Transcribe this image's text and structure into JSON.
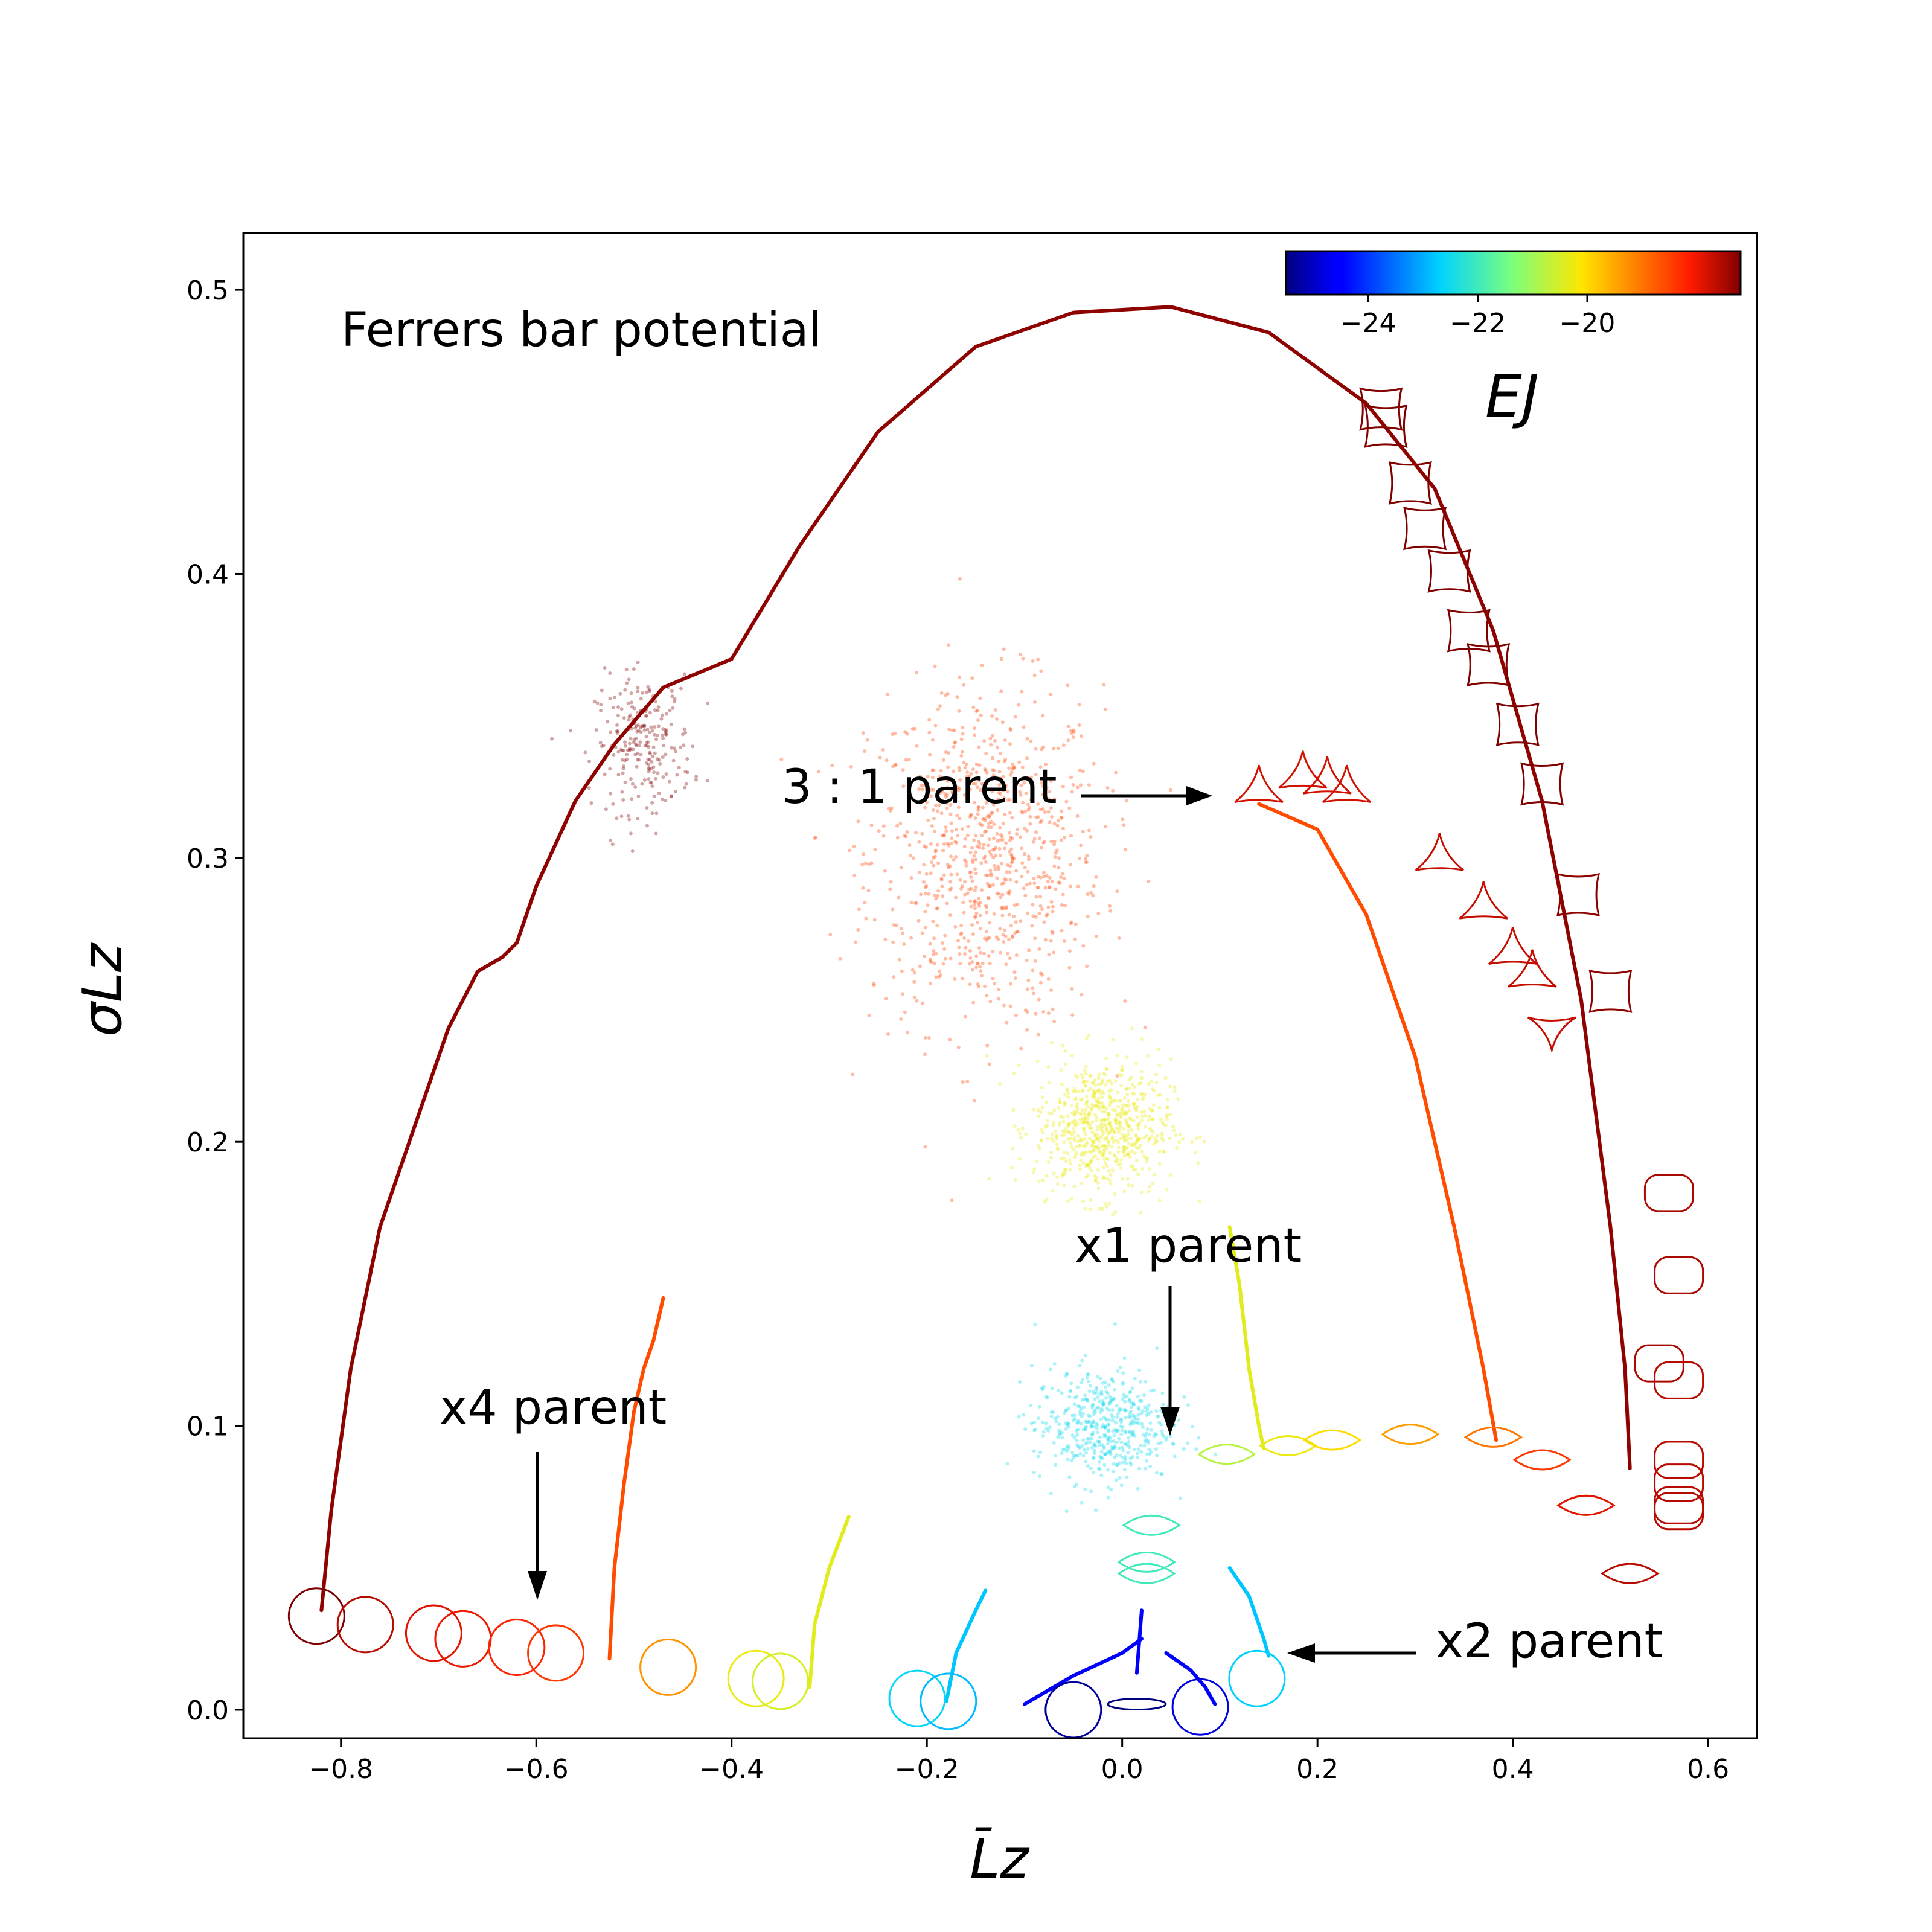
{
  "chart_data": {
    "type": "scatter",
    "title": "Ferrers bar potential",
    "xlabel": "L̄z",
    "ylabel": "σLz",
    "xlim": [
      -0.9,
      0.65
    ],
    "ylim": [
      -0.01,
      0.52
    ],
    "x_ticks": [
      -0.8,
      -0.6,
      -0.4,
      -0.2,
      0.0,
      0.2,
      0.4,
      0.6
    ],
    "x_tick_labels": [
      "−0.8",
      "−0.6",
      "−0.4",
      "−0.2",
      "0.0",
      "0.2",
      "0.4",
      "0.6"
    ],
    "y_ticks": [
      0.0,
      0.1,
      0.2,
      0.3,
      0.4,
      0.5
    ],
    "y_tick_labels": [
      "0.0",
      "0.1",
      "0.2",
      "0.3",
      "0.4",
      "0.5"
    ],
    "grid": false,
    "colorbar": {
      "label": "EJ",
      "colormap": "jet",
      "range": [
        -25.5,
        -17.2
      ],
      "ticks": [
        -24,
        -22,
        -20
      ],
      "tick_labels": [
        "−24",
        "−22",
        "−20"
      ],
      "placement": "top-right inset"
    },
    "annotations": [
      {
        "text": "3 : 1 parent",
        "x": 0.093,
        "y": 0.323
      },
      {
        "text": "x1 parent",
        "x": 0.05,
        "y": 0.098
      },
      {
        "text": "x4 parent",
        "x": -0.6,
        "y": 0.038
      },
      {
        "text": "x2 parent",
        "x": 0.17,
        "y": 0.02
      }
    ],
    "series": [
      {
        "energy": -17.3,
        "points": [
          [
            -0.82,
            0.035
          ],
          [
            -0.81,
            0.07
          ],
          [
            -0.79,
            0.12
          ],
          [
            -0.76,
            0.17
          ],
          [
            -0.72,
            0.21
          ],
          [
            -0.69,
            0.24
          ],
          [
            -0.66,
            0.26
          ],
          [
            -0.635,
            0.265
          ],
          [
            -0.62,
            0.27
          ],
          [
            -0.6,
            0.29
          ],
          [
            -0.56,
            0.32
          ],
          [
            -0.52,
            0.34
          ],
          [
            -0.47,
            0.36
          ],
          [
            -0.4,
            0.37
          ],
          [
            -0.33,
            0.41
          ],
          [
            -0.25,
            0.45
          ],
          [
            -0.15,
            0.48
          ],
          [
            -0.05,
            0.492
          ],
          [
            0.05,
            0.494
          ],
          [
            0.15,
            0.485
          ],
          [
            0.25,
            0.46
          ],
          [
            0.32,
            0.43
          ],
          [
            0.38,
            0.38
          ],
          [
            0.43,
            0.32
          ],
          [
            0.47,
            0.25
          ],
          [
            0.5,
            0.17
          ],
          [
            0.515,
            0.12
          ],
          [
            0.52,
            0.085
          ]
        ]
      },
      {
        "energy": -18.6,
        "points": [
          [
            -0.525,
            0.018
          ],
          [
            -0.52,
            0.05
          ],
          [
            -0.51,
            0.08
          ],
          [
            -0.5,
            0.105
          ],
          [
            -0.49,
            0.12
          ],
          [
            -0.48,
            0.13
          ],
          [
            -0.47,
            0.145
          ]
        ]
      },
      {
        "energy": -18.6,
        "points": [
          [
            0.14,
            0.319
          ],
          [
            0.2,
            0.31
          ],
          [
            0.25,
            0.28
          ],
          [
            0.3,
            0.23
          ],
          [
            0.34,
            0.17
          ],
          [
            0.37,
            0.12
          ],
          [
            0.383,
            0.095
          ]
        ]
      },
      {
        "energy": -20.4,
        "points": [
          [
            -0.32,
            0.008
          ],
          [
            -0.315,
            0.03
          ],
          [
            -0.3,
            0.05
          ],
          [
            -0.28,
            0.068
          ]
        ]
      },
      {
        "energy": -20.4,
        "points": [
          [
            0.11,
            0.17
          ],
          [
            0.12,
            0.15
          ],
          [
            0.13,
            0.12
          ],
          [
            0.14,
            0.1
          ],
          [
            0.145,
            0.092
          ]
        ]
      },
      {
        "energy": -22.8,
        "points": [
          [
            -0.18,
            0.003
          ],
          [
            -0.17,
            0.02
          ],
          [
            -0.15,
            0.035
          ],
          [
            -0.14,
            0.042
          ]
        ]
      },
      {
        "energy": -22.8,
        "points": [
          [
            0.11,
            0.05
          ],
          [
            0.13,
            0.04
          ],
          [
            0.145,
            0.025
          ],
          [
            0.15,
            0.019
          ]
        ]
      },
      {
        "energy": -24.6,
        "points": [
          [
            -0.1,
            0.002
          ],
          [
            -0.05,
            0.012
          ],
          [
            0.0,
            0.02
          ],
          [
            0.02,
            0.025
          ]
        ]
      },
      {
        "energy": -24.6,
        "points": [
          [
            0.045,
            0.02
          ],
          [
            0.07,
            0.014
          ],
          [
            0.085,
            0.008
          ],
          [
            0.095,
            0.002
          ]
        ]
      },
      {
        "energy": -24.6,
        "points": [
          [
            0.015,
            0.013
          ],
          [
            0.02,
            0.035
          ]
        ]
      }
    ],
    "clouds": [
      {
        "energy": -18.5,
        "center": [
          -0.14,
          0.3
        ],
        "spread": [
          0.06,
          0.03
        ],
        "count": 900
      },
      {
        "energy": -17.2,
        "center": [
          -0.49,
          0.34
        ],
        "spread": [
          0.025,
          0.012
        ],
        "count": 250
      },
      {
        "energy": -20.3,
        "center": [
          -0.02,
          0.205
        ],
        "spread": [
          0.035,
          0.012
        ],
        "count": 700
      },
      {
        "energy": -22.5,
        "center": [
          -0.02,
          0.1
        ],
        "spread": [
          0.035,
          0.01
        ],
        "count": 500
      }
    ],
    "orbit_glyphs": [
      {
        "shape": "circle",
        "energy": -17.2,
        "x": -0.825,
        "y": 0.033
      },
      {
        "shape": "circle",
        "energy": -17.6,
        "x": -0.775,
        "y": 0.03
      },
      {
        "shape": "circle",
        "energy": -17.9,
        "x": -0.705,
        "y": 0.027
      },
      {
        "shape": "circle",
        "energy": -18.0,
        "x": -0.675,
        "y": 0.025
      },
      {
        "shape": "circle",
        "energy": -18.2,
        "x": -0.62,
        "y": 0.022
      },
      {
        "shape": "circle",
        "energy": -18.4,
        "x": -0.58,
        "y": 0.02
      },
      {
        "shape": "circle",
        "energy": -19.3,
        "x": -0.465,
        "y": 0.015
      },
      {
        "shape": "circle",
        "energy": -20.3,
        "x": -0.375,
        "y": 0.011
      },
      {
        "shape": "circle",
        "energy": -20.5,
        "x": -0.35,
        "y": 0.01
      },
      {
        "shape": "circle",
        "energy": -22.6,
        "x": -0.21,
        "y": 0.004
      },
      {
        "shape": "circle",
        "energy": -22.9,
        "x": -0.178,
        "y": 0.003
      },
      {
        "shape": "circle",
        "energy": -25.3,
        "x": -0.05,
        "y": 0.0
      },
      {
        "shape": "circle",
        "energy": -24.8,
        "x": 0.08,
        "y": 0.001
      },
      {
        "shape": "circle",
        "energy": -22.7,
        "x": 0.138,
        "y": 0.011
      },
      {
        "shape": "ellipse",
        "energy": -25.5,
        "x": 0.015,
        "y": 0.002
      },
      {
        "shape": "lens",
        "energy": -20.8,
        "x": 0.107,
        "y": 0.09
      },
      {
        "shape": "lens",
        "energy": -20.3,
        "x": 0.17,
        "y": 0.093
      },
      {
        "shape": "lens",
        "energy": -20.0,
        "x": 0.215,
        "y": 0.095
      },
      {
        "shape": "lens",
        "energy": -19.4,
        "x": 0.295,
        "y": 0.097
      },
      {
        "shape": "lens",
        "energy": -19.0,
        "x": 0.38,
        "y": 0.096
      },
      {
        "shape": "lens",
        "energy": -18.4,
        "x": 0.43,
        "y": 0.088
      },
      {
        "shape": "lens",
        "energy": -17.9,
        "x": 0.475,
        "y": 0.072
      },
      {
        "shape": "lens",
        "energy": -17.6,
        "x": 0.52,
        "y": 0.048
      },
      {
        "shape": "lens",
        "energy": -22.0,
        "x": 0.03,
        "y": 0.065
      },
      {
        "shape": "lens",
        "energy": -22.0,
        "x": 0.025,
        "y": 0.052
      },
      {
        "shape": "lens",
        "energy": -22.0,
        "x": 0.025,
        "y": 0.048
      },
      {
        "shape": "triangle",
        "energy": -17.8,
        "x": 0.14,
        "y": 0.325
      },
      {
        "shape": "triangle",
        "energy": -17.8,
        "x": 0.185,
        "y": 0.33
      },
      {
        "shape": "triangle",
        "energy": -17.8,
        "x": 0.21,
        "y": 0.328
      },
      {
        "shape": "triangle",
        "energy": -17.8,
        "x": 0.23,
        "y": 0.325
      },
      {
        "shape": "triangle",
        "energy": -17.7,
        "x": 0.325,
        "y": 0.301
      },
      {
        "shape": "triangle",
        "energy": -17.7,
        "x": 0.37,
        "y": 0.284
      },
      {
        "shape": "triangle",
        "energy": -17.7,
        "x": 0.4,
        "y": 0.268
      },
      {
        "shape": "triangle",
        "energy": -17.7,
        "x": 0.42,
        "y": 0.26
      },
      {
        "shape": "triangle-down",
        "energy": -17.7,
        "x": 0.44,
        "y": 0.24
      },
      {
        "shape": "square",
        "energy": -17.2,
        "x": 0.265,
        "y": 0.458
      },
      {
        "shape": "square",
        "energy": -17.2,
        "x": 0.27,
        "y": 0.452
      },
      {
        "shape": "square",
        "energy": -17.2,
        "x": 0.295,
        "y": 0.432
      },
      {
        "shape": "square",
        "energy": -17.2,
        "x": 0.31,
        "y": 0.416
      },
      {
        "shape": "square",
        "energy": -17.2,
        "x": 0.335,
        "y": 0.401
      },
      {
        "shape": "square",
        "energy": -17.2,
        "x": 0.355,
        "y": 0.38
      },
      {
        "shape": "square",
        "energy": -17.2,
        "x": 0.375,
        "y": 0.368
      },
      {
        "shape": "square",
        "energy": -17.2,
        "x": 0.405,
        "y": 0.347
      },
      {
        "shape": "square",
        "energy": -17.2,
        "x": 0.43,
        "y": 0.326
      },
      {
        "shape": "square",
        "energy": -17.3,
        "x": 0.467,
        "y": 0.287
      },
      {
        "shape": "square",
        "energy": -17.3,
        "x": 0.5,
        "y": 0.253
      },
      {
        "shape": "rounded",
        "energy": -17.5,
        "x": 0.56,
        "y": 0.182
      },
      {
        "shape": "rounded",
        "energy": -17.5,
        "x": 0.57,
        "y": 0.153
      },
      {
        "shape": "rounded",
        "energy": -17.5,
        "x": 0.55,
        "y": 0.122
      },
      {
        "shape": "rounded",
        "energy": -17.6,
        "x": 0.57,
        "y": 0.116
      },
      {
        "shape": "rounded",
        "energy": -17.6,
        "x": 0.57,
        "y": 0.088
      },
      {
        "shape": "rounded",
        "energy": -17.6,
        "x": 0.57,
        "y": 0.08
      },
      {
        "shape": "rounded",
        "energy": -17.6,
        "x": 0.57,
        "y": 0.072
      },
      {
        "shape": "rounded",
        "energy": -17.6,
        "x": 0.57,
        "y": 0.07
      }
    ]
  }
}
